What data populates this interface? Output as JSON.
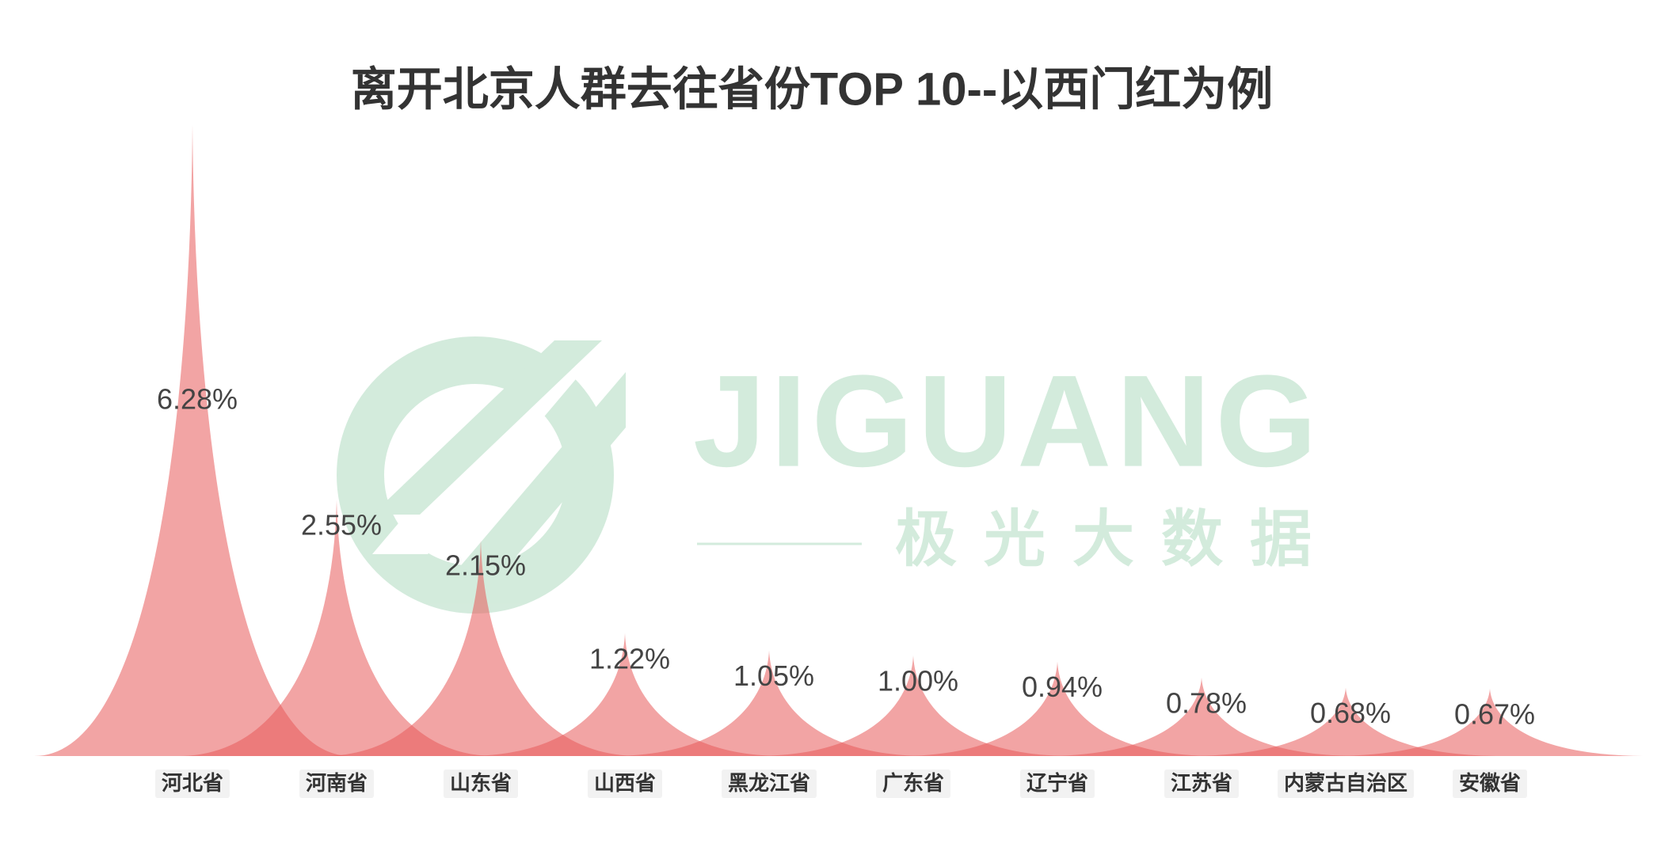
{
  "chart_data": {
    "type": "spike",
    "title": "离开北京人群去往省份TOP 10--以西门红为例",
    "categories": [
      "河北省",
      "河南省",
      "山东省",
      "山西省",
      "黑龙江省",
      "广东省",
      "辽宁省",
      "江苏省",
      "内蒙古自治区",
      "安徽省"
    ],
    "values": [
      6.28,
      2.55,
      2.15,
      1.22,
      1.05,
      1.0,
      0.94,
      0.78,
      0.68,
      0.67
    ],
    "value_labels": [
      "6.28%",
      "2.55%",
      "2.15%",
      "1.22%",
      "1.05%",
      "1.00%",
      "0.94%",
      "0.78%",
      "0.68%",
      "0.67%"
    ],
    "color": "#e8595a"
  },
  "watermark": {
    "brand": "JIGUANG",
    "tagline": "极光大数据"
  }
}
